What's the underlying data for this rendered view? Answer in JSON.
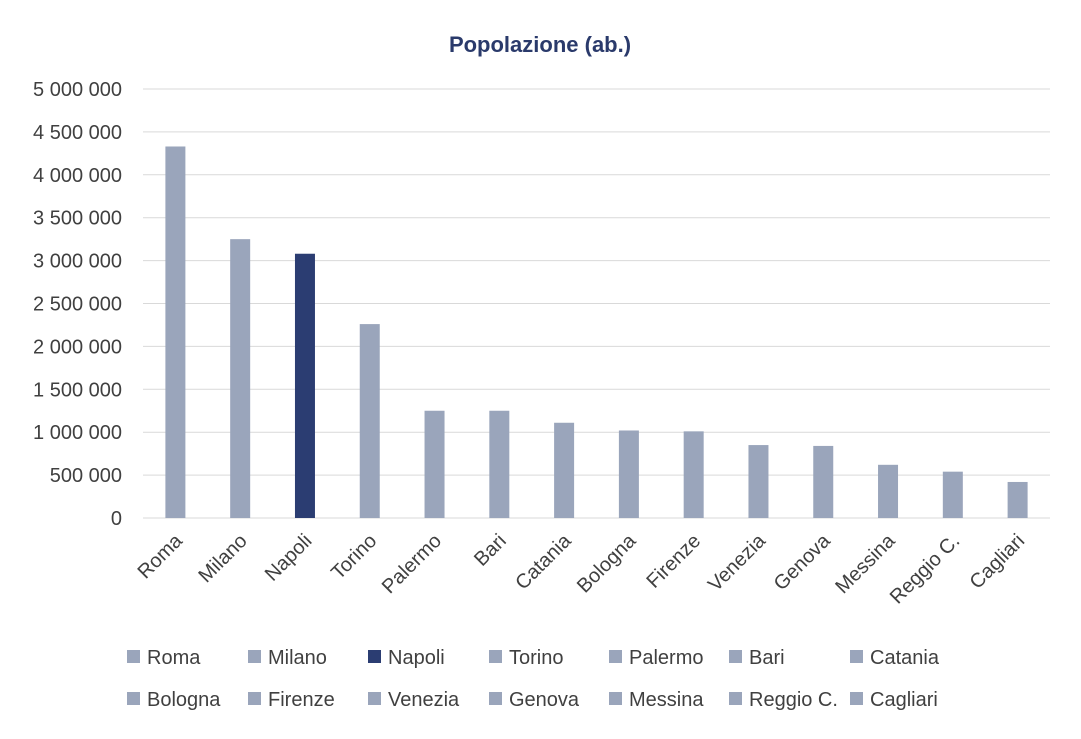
{
  "chart_data": {
    "type": "bar",
    "title": "Popolazione (ab.)",
    "xlabel": "",
    "ylabel": "",
    "ylim": [
      0,
      5000000
    ],
    "yticks": [
      0,
      500000,
      1000000,
      1500000,
      2000000,
      2500000,
      3000000,
      3500000,
      4000000,
      4500000,
      5000000
    ],
    "ytick_labels": [
      "0",
      "500 000",
      "1 000 000",
      "1 500 000",
      "2 000 000",
      "2 500 000",
      "3 000 000",
      "3 500 000",
      "4 000 000",
      "4 500 000",
      "5 000 000"
    ],
    "grid": true,
    "legend_position": "bottom",
    "categories": [
      "Roma",
      "Milano",
      "Napoli",
      "Torino",
      "Palermo",
      "Bari",
      "Catania",
      "Bologna",
      "Firenze",
      "Venezia",
      "Genova",
      "Messina",
      "Reggio C.",
      "Cagliari"
    ],
    "values": [
      4330000,
      3250000,
      3080000,
      2260000,
      1250000,
      1250000,
      1110000,
      1020000,
      1010000,
      850000,
      840000,
      620000,
      540000,
      420000
    ],
    "highlight": "Napoli",
    "colors": {
      "default": "#9aa5bb",
      "highlight": "#2b3d72"
    }
  }
}
